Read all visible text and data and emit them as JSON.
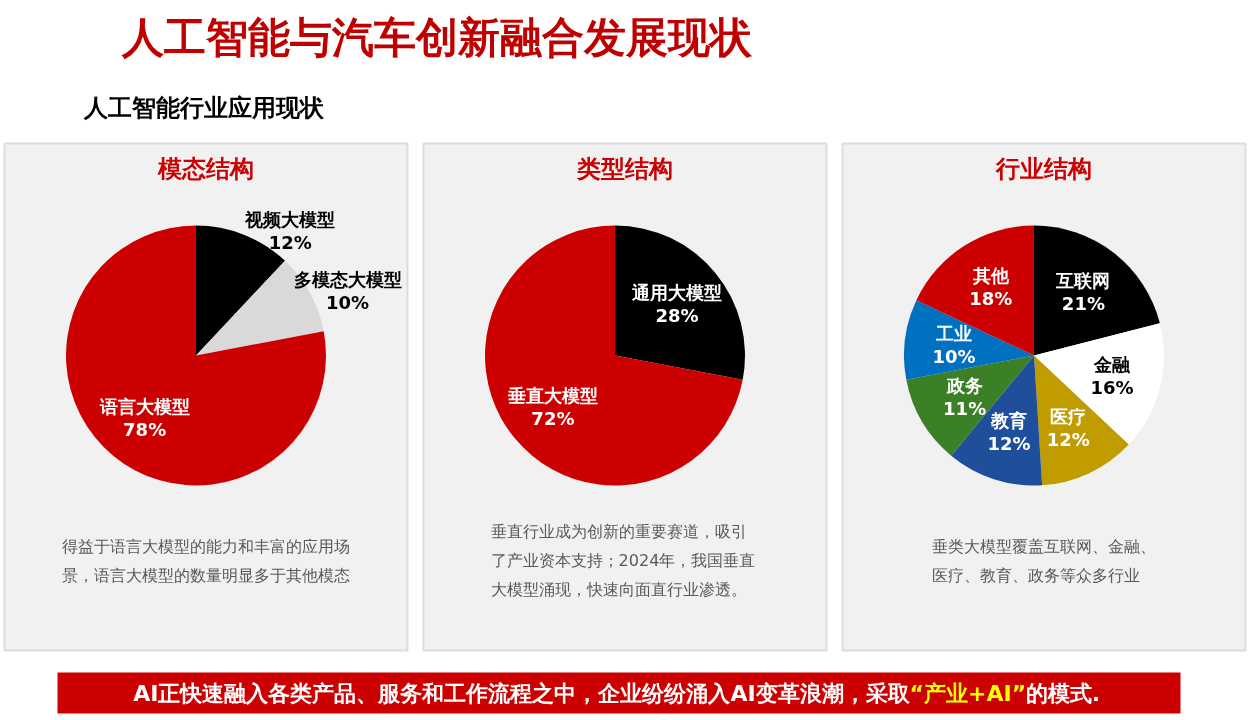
{
  "chart_data": [
    {
      "type": "other",
      "title": "人工智能与汽车创新融合发展现状",
      "subtitle": "人工智能行业应用现状"
    },
    {
      "type": "pie",
      "title": "模态结构",
      "categories": [
        "视频大模型",
        "多模态大模型",
        "语言大模型"
      ],
      "values": [
        12,
        10,
        78
      ],
      "colors": [
        "#000000",
        "#d9d9d9",
        "#cc0000"
      ],
      "value_labels": [
        "12%",
        "10%",
        "78%"
      ],
      "annotations": [
        "得益于语言大模型的能力和丰富的应用场",
        "景，语言大模型的数量明显多于其他模态"
      ]
    },
    {
      "type": "pie",
      "title": "类型结构",
      "categories": [
        "通用大模型",
        "垂直大模型"
      ],
      "values": [
        28,
        72
      ],
      "colors": [
        "#000000",
        "#cc0000"
      ],
      "value_labels": [
        "28%",
        "72%"
      ],
      "annotations": [
        "垂直行业成为创新的重要赛道，吸引",
        "了产业资本支持；2024年，我国垂直",
        "大模型涌现，快速向面直行业渗透。"
      ]
    },
    {
      "type": "pie",
      "title": "行业结构",
      "categories": [
        "互联网",
        "金融",
        "医疗",
        "教育",
        "政务",
        "工业",
        "其他"
      ],
      "values": [
        21,
        16,
        12,
        12,
        11,
        10,
        18
      ],
      "colors": [
        "#000000",
        "#ffffff",
        "#c09c00",
        "#1f4e9a",
        "#3b7f26",
        "#0070c0",
        "#cc0000"
      ],
      "value_labels": [
        "21%",
        "16%",
        "12%",
        "12%",
        "11%",
        "10%",
        "18%"
      ],
      "annotations": [
        "垂类大模型覆盖互联网、金融、",
        "医疗、教育、政务等众多行业"
      ]
    },
    {
      "type": "other",
      "annotations": [
        "AI正快速融入各类产品、服务和工作流程之中，企业纷纷涌入AI变革浪潮，采取",
        "“产业+AI”",
        "的模式."
      ]
    }
  ]
}
